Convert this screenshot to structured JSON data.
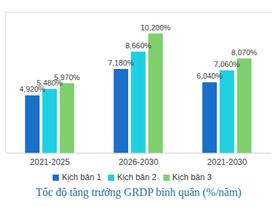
{
  "chart_data": {
    "type": "bar",
    "title": "Tốc độ tăng trưởng GRDP bình quân (%/năm)",
    "categories": [
      "2021-2025",
      "2026-2030",
      "2021-2030"
    ],
    "series": [
      {
        "name": "Kịch bản 1",
        "color": "#1a6fc9",
        "values": [
          4.92,
          7.18,
          6.04
        ],
        "value_labels": [
          "4,920%",
          "7,180%",
          "6,040%"
        ]
      },
      {
        "name": "Kịch bản 2",
        "color": "#1fd0e3",
        "values": [
          5.48,
          8.66,
          7.06
        ],
        "value_labels": [
          "5,480%",
          "8,660%",
          "7,060%"
        ]
      },
      {
        "name": "Kịch bản 3",
        "color": "#7fd06c",
        "values": [
          5.97,
          10.2,
          8.07
        ],
        "value_labels": [
          "5,970%",
          "10,200%",
          "8,070%"
        ]
      }
    ],
    "ylim": [
      0,
      12
    ],
    "yticks": [
      0,
      2,
      4,
      6,
      8,
      10,
      12
    ],
    "grid": true,
    "legend": "bottom",
    "data_labels": true,
    "tick_labels": "x"
  }
}
